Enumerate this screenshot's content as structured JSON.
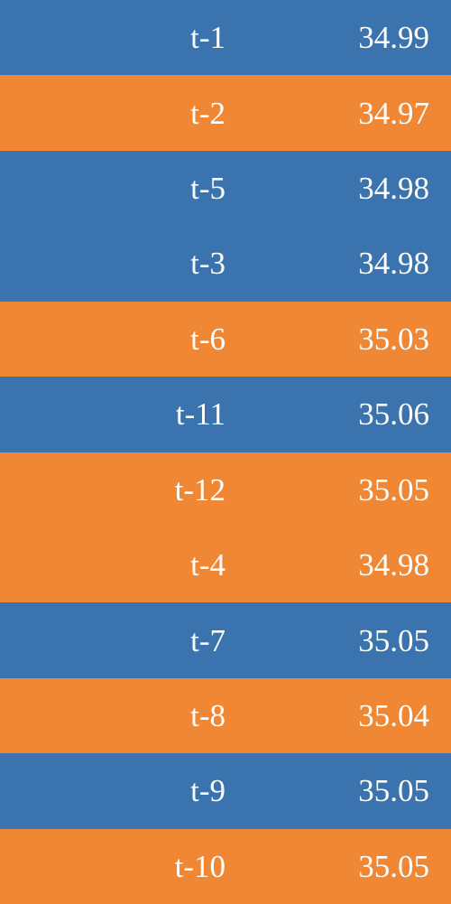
{
  "rows": [
    {
      "label": "t-1",
      "value": "34.99",
      "color": "#3a73ad"
    },
    {
      "label": "t-2",
      "value": "34.97",
      "color": "#ef8735"
    },
    {
      "label": "t-5",
      "value": "34.98",
      "color": "#3a73ad"
    },
    {
      "label": "t-3",
      "value": "34.98",
      "color": "#3a73ad"
    },
    {
      "label": "t-6",
      "value": "35.03",
      "color": "#ef8735"
    },
    {
      "label": "t-11",
      "value": "35.06",
      "color": "#3a73ad"
    },
    {
      "label": "t-12",
      "value": "35.05",
      "color": "#ef8735"
    },
    {
      "label": "t-4",
      "value": "34.98",
      "color": "#ef8735"
    },
    {
      "label": "t-7",
      "value": "35.05",
      "color": "#3a73ad"
    },
    {
      "label": "t-8",
      "value": "35.04",
      "color": "#ef8735"
    },
    {
      "label": "t-9",
      "value": "35.05",
      "color": "#3a73ad"
    },
    {
      "label": "t-10",
      "value": "35.05",
      "color": "#ef8735"
    }
  ]
}
